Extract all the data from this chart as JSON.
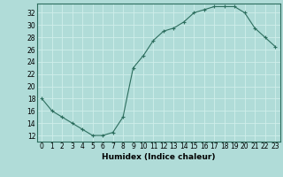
{
  "x": [
    0,
    1,
    2,
    3,
    4,
    5,
    6,
    7,
    8,
    9,
    10,
    11,
    12,
    13,
    14,
    15,
    16,
    17,
    18,
    19,
    20,
    21,
    22,
    23
  ],
  "y": [
    18,
    16,
    15,
    14,
    13,
    12,
    12,
    12.5,
    15,
    23,
    25,
    27.5,
    29,
    29.5,
    30.5,
    32,
    32.5,
    33,
    33,
    33,
    32,
    29.5,
    28,
    26.5
  ],
  "line_color": "#2d6e5e",
  "marker": "+",
  "background_color": "#b0dcd8",
  "grid_color": "#d0eeeb",
  "xlabel": "Humidex (Indice chaleur)",
  "yticks": [
    12,
    14,
    16,
    18,
    20,
    22,
    24,
    26,
    28,
    30,
    32
  ],
  "ylim": [
    11,
    33.5
  ],
  "xlim": [
    -0.5,
    23.5
  ],
  "xticks": [
    0,
    1,
    2,
    3,
    4,
    5,
    6,
    7,
    8,
    9,
    10,
    11,
    12,
    13,
    14,
    15,
    16,
    17,
    18,
    19,
    20,
    21,
    22,
    23
  ],
  "axis_fontsize": 5.5,
  "label_fontsize": 6.5
}
